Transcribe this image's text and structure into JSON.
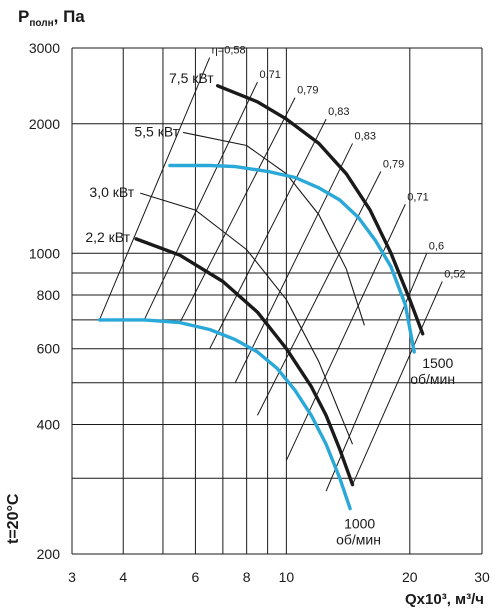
{
  "chart_data": {
    "type": "line",
    "ylabel": "P полн, Па",
    "ylabel_main": "P",
    "ylabel_sub": "полн",
    "ylabel_unit": ", Па",
    "xlabel": "Qx10³, м³/ч",
    "side_label": "t=20°C",
    "xscale": "log",
    "yscale": "log",
    "xlim": [
      3,
      30
    ],
    "ylim": [
      200,
      3000
    ],
    "x_ticks": [
      "3",
      "4",
      "6",
      "8",
      "10",
      "20",
      "30"
    ],
    "y_ticks": [
      "200",
      "400",
      "600",
      "800",
      "1000",
      "2000",
      "3000"
    ],
    "grid": true,
    "accent_color": "#2aa8d8",
    "line_color": "#1a1a1a",
    "series": [
      {
        "name": "1000 об/мин",
        "style": "blue",
        "x": [
          3.5,
          4.5,
          5.5,
          6.5,
          7.5,
          8.5,
          9.5,
          10.5,
          11.5,
          12.5,
          13.5,
          14.3
        ],
        "y": [
          700,
          700,
          690,
          665,
          630,
          590,
          540,
          480,
          420,
          360,
          300,
          255
        ]
      },
      {
        "name": "1500 об/мин",
        "style": "blue",
        "x": [
          5.2,
          6.5,
          7.5,
          9,
          10.5,
          12,
          13.5,
          15,
          16.5,
          18,
          19.5,
          20.5
        ],
        "y": [
          1600,
          1600,
          1590,
          1550,
          1500,
          1420,
          1330,
          1210,
          1070,
          930,
          760,
          590
        ]
      },
      {
        "name": "2,2 кВт",
        "style": "black",
        "x": [
          4.3,
          5.5,
          7,
          8.5,
          10,
          11.5,
          12.5,
          13.5,
          14.5
        ],
        "y": [
          1080,
          990,
          860,
          730,
          600,
          490,
          420,
          350,
          290
        ]
      },
      {
        "name": "7,5 кВт",
        "style": "black",
        "x": [
          6.8,
          8.5,
          10,
          12,
          14,
          16,
          18,
          20,
          21.5
        ],
        "y": [
          2450,
          2250,
          2050,
          1800,
          1530,
          1260,
          1000,
          780,
          650
        ]
      }
    ],
    "thin_curves": [
      {
        "label": "3,0 кВт",
        "x": [
          4.4,
          6,
          8,
          10,
          12,
          14.5
        ],
        "y": [
          1380,
          1260,
          1020,
          780,
          560,
          360
        ]
      },
      {
        "label": "5,5 кВт",
        "x": [
          5.6,
          8,
          10,
          12,
          14,
          15.5
        ],
        "y": [
          1910,
          1780,
          1530,
          1230,
          920,
          680
        ]
      }
    ],
    "efficiency_lines": [
      {
        "label": "η=0,58",
        "p1": [
          3.5,
          700
        ],
        "p2": [
          6.5,
          2850
        ]
      },
      {
        "label": "0,71",
        "p1": [
          4.5,
          700
        ],
        "p2": [
          8.5,
          2500
        ]
      },
      {
        "label": "0,79",
        "p1": [
          5.5,
          690
        ],
        "p2": [
          10.5,
          2300
        ]
      },
      {
        "label": "0,83",
        "p1": [
          6.5,
          600
        ],
        "p2": [
          12.5,
          2050
        ]
      },
      {
        "label": "0,83",
        "p1": [
          7.5,
          500
        ],
        "p2": [
          14.5,
          1800
        ]
      },
      {
        "label": "0,79",
        "p1": [
          8.5,
          420
        ],
        "p2": [
          17,
          1550
        ]
      },
      {
        "label": "0,71",
        "p1": [
          10,
          330
        ],
        "p2": [
          19.5,
          1300
        ]
      },
      {
        "label": "0,6",
        "p1": [
          12.5,
          280
        ],
        "p2": [
          22,
          1000
        ]
      },
      {
        "label": "0,52",
        "p1": [
          14.5,
          290
        ],
        "p2": [
          24,
          860
        ]
      }
    ],
    "annotations": [
      {
        "text": "7,5 кВт"
      },
      {
        "text": "5,5 кВт"
      },
      {
        "text": "3,0 кВт"
      },
      {
        "text": "2,2 кВт"
      },
      {
        "text": "1500"
      },
      {
        "text": "об/мин"
      },
      {
        "text": "1000"
      },
      {
        "text": "об/мин"
      }
    ]
  }
}
